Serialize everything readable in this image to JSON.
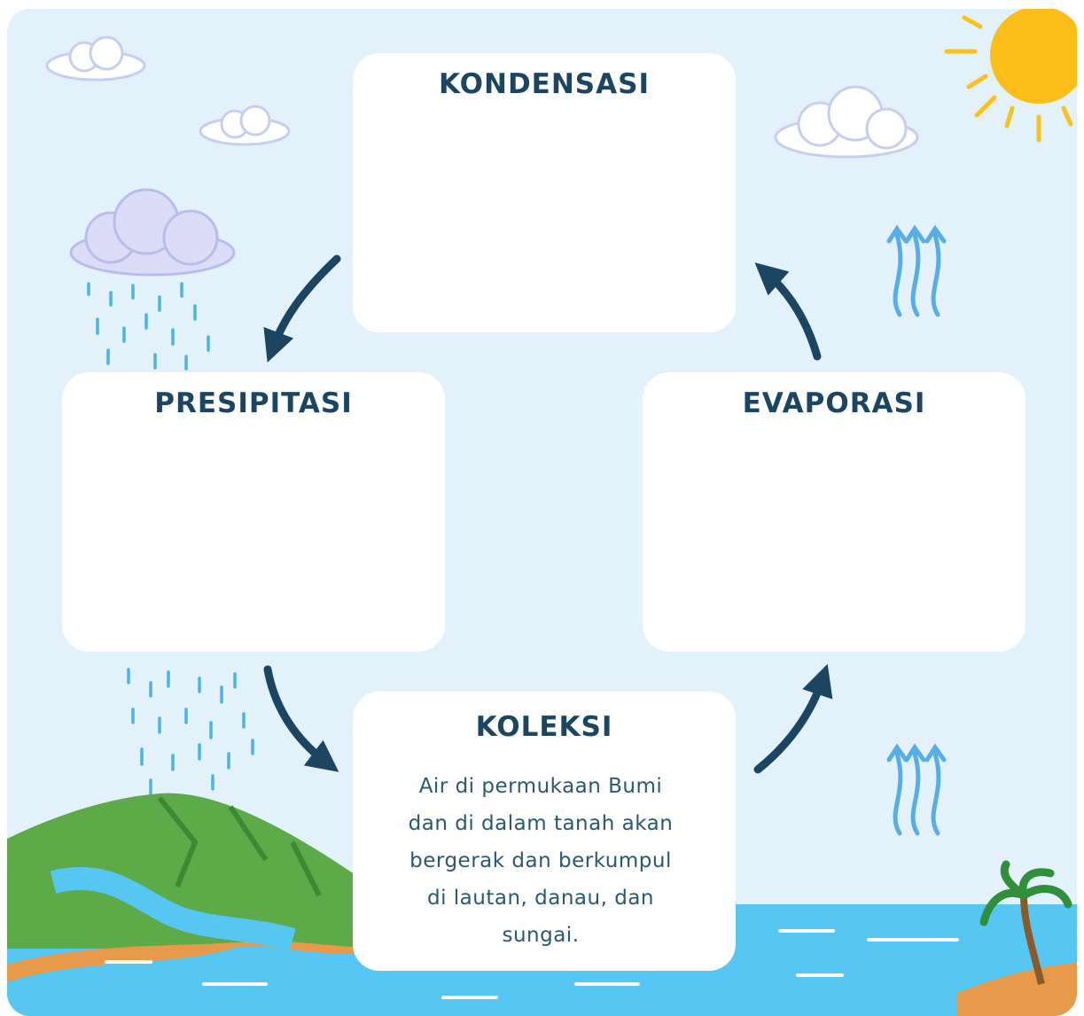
{
  "diagram": {
    "boxes": [
      {
        "title": "KONDENSASI"
      },
      {
        "title": "PRESIPITASI"
      },
      {
        "title": "EVAPORASI"
      },
      {
        "title": "KOLEKSI",
        "text_lines": [
          "Air di permukaan Bumi",
          "dan di dalam tanah akan",
          "bergerak dan berkumpul",
          "di lautan, danau, dan",
          "sungai."
        ]
      }
    ]
  }
}
